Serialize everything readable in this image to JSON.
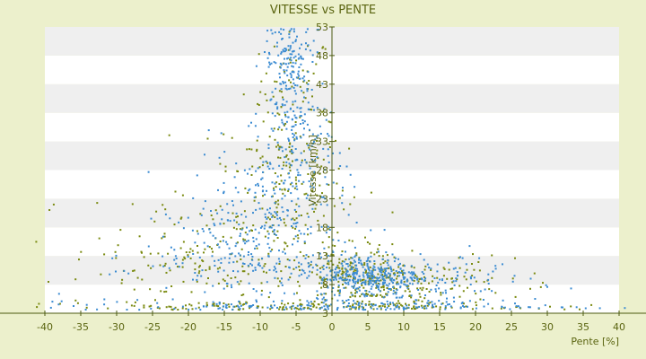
{
  "chart_data": {
    "type": "scatter",
    "title": "VITESSE vs PENTE",
    "xlabel": "Pente [%]",
    "ylabel": "Vitesse [km/h]",
    "xlim": [
      -40,
      40
    ],
    "ylim": [
      3,
      53
    ],
    "x_ticks": [
      "-40",
      "-35",
      "-30",
      "-25",
      "-20",
      "-15",
      "-10",
      "-5",
      "0",
      "5",
      "10",
      "15",
      "20",
      "25",
      "30",
      "35",
      "40"
    ],
    "y_ticks": [
      "3",
      "8",
      "13",
      "18",
      "23",
      "28",
      "33",
      "38",
      "43",
      "48",
      "53"
    ],
    "grid": "alternating horizontal bands",
    "colors": {
      "background": "#ecf0cc",
      "band_white": "#ffffff",
      "band_gray": "#efefef",
      "axis": "#4b5a10",
      "series_blue": "#3c8cd2",
      "series_olive": "#7a8a10"
    },
    "series": [
      {
        "color": "blue",
        "clusters": [
          {
            "cx": -6,
            "cy": 47,
            "sx": 1.6,
            "sy": 3.5,
            "n": 140
          },
          {
            "cx": -5,
            "cy": 33,
            "sx": 2.6,
            "sy": 6.0,
            "n": 160
          },
          {
            "cx": -9,
            "cy": 20,
            "sx": 5.5,
            "sy": 6.0,
            "n": 220
          },
          {
            "cx": -14,
            "cy": 11,
            "sx": 8.0,
            "sy": 4.0,
            "n": 140
          },
          {
            "cx": 5,
            "cy": 9.5,
            "sx": 3.5,
            "sy": 2.0,
            "n": 320
          },
          {
            "cx": 14,
            "cy": 9.0,
            "sx": 6.5,
            "sy": 2.5,
            "n": 120
          },
          {
            "cx": 0,
            "cy": 4.2,
            "sx": 18.0,
            "sy": 0.5,
            "n": 180
          }
        ]
      },
      {
        "color": "olive",
        "clusters": [
          {
            "cx": -5,
            "cy": 42,
            "sx": 2.5,
            "sy": 5.0,
            "n": 60
          },
          {
            "cx": -7,
            "cy": 26,
            "sx": 4.5,
            "sy": 7.0,
            "n": 170
          },
          {
            "cx": -17,
            "cy": 13,
            "sx": 8.5,
            "sy": 5.0,
            "n": 200
          },
          {
            "cx": 4,
            "cy": 9,
            "sx": 4.0,
            "sy": 2.5,
            "n": 220
          },
          {
            "cx": 13,
            "cy": 8,
            "sx": 7.0,
            "sy": 2.5,
            "n": 120
          },
          {
            "cx": -2,
            "cy": 4.1,
            "sx": 16.0,
            "sy": 0.45,
            "n": 160
          }
        ]
      }
    ]
  }
}
